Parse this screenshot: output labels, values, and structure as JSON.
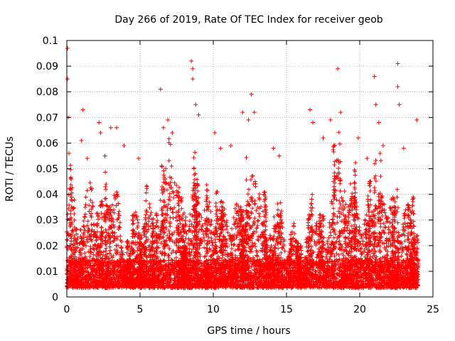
{
  "chart_data": {
    "type": "scatter",
    "title": "Day 266 of 2019, Rate Of TEC Index for receiver geob",
    "xlabel": "GPS time / hours",
    "ylabel": "ROTI / TECUs",
    "xlim": [
      0,
      25
    ],
    "ylim": [
      0,
      0.1
    ],
    "xticks": [
      0,
      5,
      10,
      15,
      20,
      25
    ],
    "xtick_labels": [
      "0",
      "5",
      "10",
      "15",
      "20",
      "25"
    ],
    "yticks": [
      0,
      0.01,
      0.02,
      0.03,
      0.04,
      0.05,
      0.06,
      0.07,
      0.08,
      0.09,
      0.1
    ],
    "ytick_labels": [
      "0",
      "0.01",
      "0.02",
      "0.03",
      "0.04",
      "0.05",
      "0.06",
      "0.07",
      "0.08",
      "0.09",
      "0.1"
    ],
    "grid": true,
    "marker": "+",
    "marker_color": "#ff0000",
    "series": [
      {
        "name": "ROTI",
        "peaks": [
          [
            0.05,
            0.097
          ],
          [
            0.05,
            0.085
          ],
          [
            0.1,
            0.07
          ],
          [
            0.15,
            0.056
          ],
          [
            0.3,
            0.046
          ],
          [
            1.0,
            0.061
          ],
          [
            1.1,
            0.073
          ],
          [
            1.4,
            0.054
          ],
          [
            2.2,
            0.068
          ],
          [
            2.3,
            0.064
          ],
          [
            2.6,
            0.055
          ],
          [
            3.0,
            0.066
          ],
          [
            3.4,
            0.066
          ],
          [
            3.9,
            0.059
          ],
          [
            4.9,
            0.054
          ],
          [
            6.4,
            0.081
          ],
          [
            6.6,
            0.066
          ],
          [
            6.9,
            0.069
          ],
          [
            7.2,
            0.064
          ],
          [
            8.5,
            0.092
          ],
          [
            8.6,
            0.089
          ],
          [
            8.6,
            0.085
          ],
          [
            8.8,
            0.075
          ],
          [
            9.0,
            0.071
          ],
          [
            10.1,
            0.064
          ],
          [
            10.5,
            0.058
          ],
          [
            11.2,
            0.059
          ],
          [
            12.0,
            0.072
          ],
          [
            12.4,
            0.069
          ],
          [
            12.6,
            0.079
          ],
          [
            12.8,
            0.072
          ],
          [
            14.1,
            0.058
          ],
          [
            14.5,
            0.055
          ],
          [
            16.6,
            0.073
          ],
          [
            16.8,
            0.068
          ],
          [
            17.5,
            0.062
          ],
          [
            18.0,
            0.069
          ],
          [
            18.5,
            0.089
          ],
          [
            18.7,
            0.072
          ],
          [
            19.9,
            0.062
          ],
          [
            20.5,
            0.054
          ],
          [
            21.0,
            0.086
          ],
          [
            21.1,
            0.075
          ],
          [
            21.3,
            0.068
          ],
          [
            21.6,
            0.059
          ],
          [
            22.6,
            0.091
          ],
          [
            22.6,
            0.082
          ],
          [
            22.7,
            0.075
          ],
          [
            23.0,
            0.058
          ],
          [
            23.9,
            0.069
          ]
        ]
      }
    ]
  }
}
